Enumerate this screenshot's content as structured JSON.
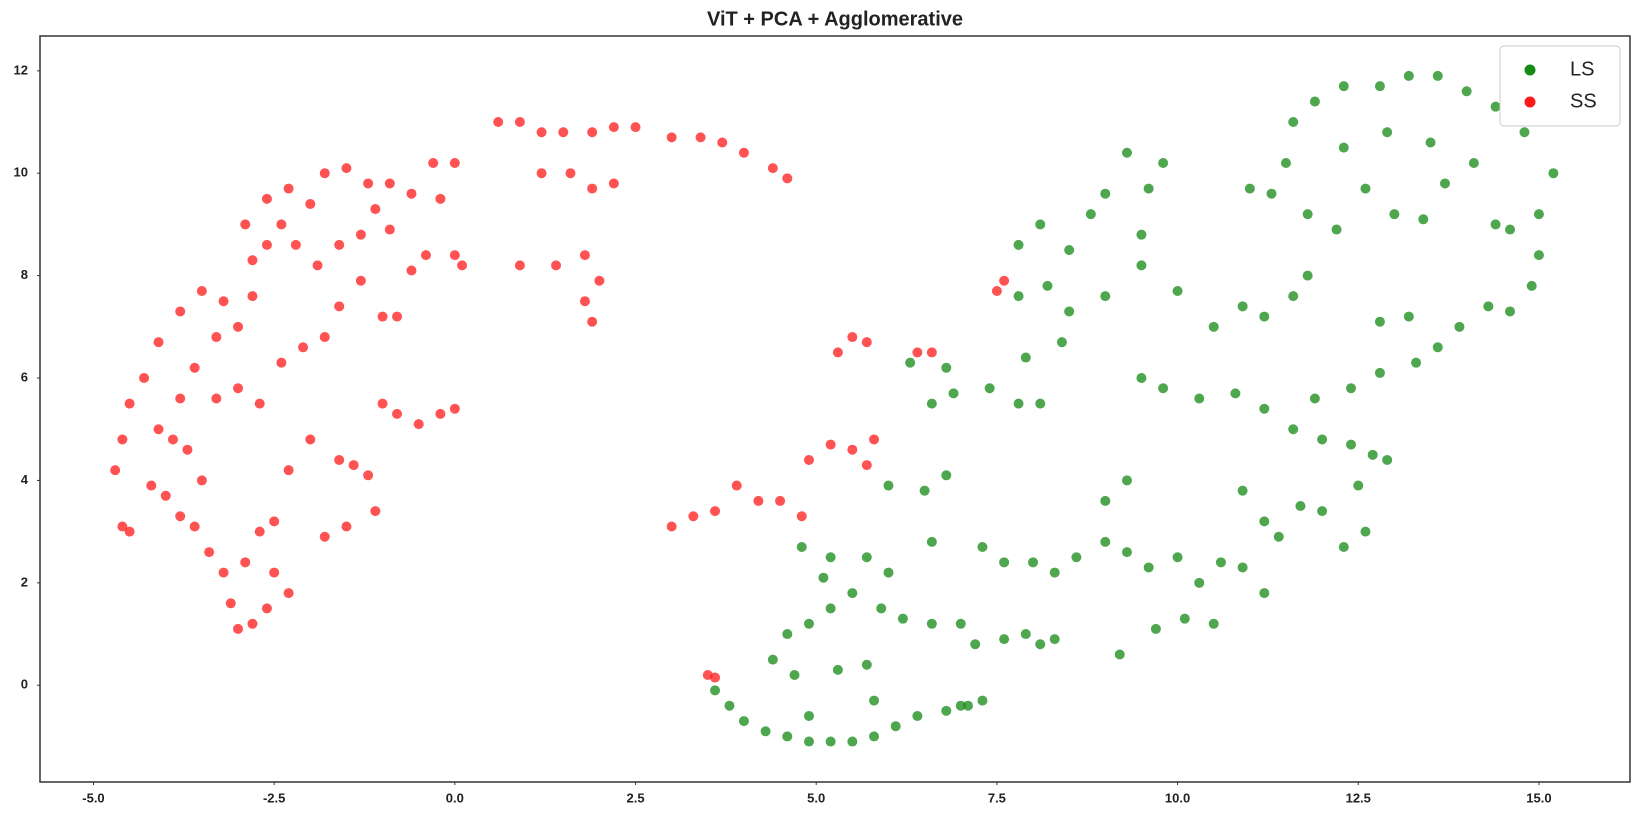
{
  "chart_data": {
    "type": "scatter",
    "title": "ViT + PCA + Agglomerative",
    "xlim": [
      -5.74,
      16.26
    ],
    "ylim": [
      -1.89,
      12.68
    ],
    "xticks": [
      {
        "value": -5,
        "label": "-5.0"
      },
      -2.5,
      {
        "value": 0,
        "label": "0.0"
      },
      2.5,
      {
        "value": 5,
        "label": "5.0"
      },
      7.5,
      {
        "value": 10,
        "label": "10.0"
      },
      12.5,
      {
        "value": 15,
        "label": "15.0"
      }
    ],
    "yticks": [
      0,
      2,
      4,
      6,
      8,
      10,
      12
    ],
    "grid": false,
    "legend": "upper right",
    "series": [
      {
        "name": "LS",
        "color": "#138a13",
        "x": [
          3.6,
          3.8,
          4.0,
          4.3,
          4.6,
          4.9,
          5.2,
          5.5,
          5.8,
          6.1,
          6.4,
          6.8,
          7.1,
          7.3,
          7.0,
          4.7,
          4.9,
          5.3,
          5.7,
          5.8,
          4.4,
          4.6,
          4.9,
          5.2,
          5.5,
          5.1,
          5.2,
          4.8,
          5.7,
          6.0,
          5.9,
          6.2,
          6.6,
          7.0,
          7.2,
          7.6,
          7.9,
          8.1,
          8.3,
          7.3,
          7.6,
          8.0,
          8.3,
          8.6,
          9.0,
          9.3,
          9.6,
          10.0,
          10.3,
          10.6,
          10.9,
          11.2,
          9.2,
          9.7,
          10.1,
          10.5,
          9.0,
          9.3,
          6.0,
          6.5,
          6.8,
          6.6,
          6.6,
          6.9,
          6.8,
          7.4,
          7.8,
          8.1,
          7.9,
          8.4,
          8.5,
          8.2,
          7.8,
          7.8,
          8.1,
          8.5,
          8.8,
          9.0,
          9.6,
          9.8,
          9.5,
          9.5,
          9.0,
          10.0,
          10.5,
          10.9,
          11.2,
          11.6,
          11.8,
          9.5,
          9.8,
          10.3,
          10.8,
          11.2,
          11.6,
          12.0,
          12.4,
          12.7,
          12.9,
          12.5,
          12.0,
          11.7,
          11.2,
          10.9,
          12.3,
          12.6,
          11.4,
          11.9,
          12.4,
          12.8,
          13.3,
          13.6,
          13.9,
          14.3,
          14.6,
          14.9,
          15.0,
          15.0,
          15.2,
          14.8,
          14.4,
          14.0,
          13.6,
          13.2,
          12.8,
          12.3,
          11.9,
          11.6,
          11.5,
          11.3,
          11.8,
          12.2,
          12.6,
          13.0,
          13.4,
          13.7,
          14.1,
          14.4,
          14.6,
          12.8,
          13.2,
          12.3,
          12.9,
          13.5,
          11.0,
          9.3,
          6.3
        ],
        "y": [
          -0.1,
          -0.4,
          -0.7,
          -0.9,
          -1.0,
          -1.1,
          -1.1,
          -1.1,
          -1.0,
          -0.8,
          -0.6,
          -0.5,
          -0.4,
          -0.3,
          -0.4,
          0.2,
          -0.6,
          0.3,
          0.4,
          -0.3,
          0.5,
          1.0,
          1.2,
          1.5,
          1.8,
          2.1,
          2.5,
          2.7,
          2.5,
          2.2,
          1.5,
          1.3,
          1.2,
          1.2,
          0.8,
          0.9,
          1.0,
          0.8,
          0.9,
          2.7,
          2.4,
          2.4,
          2.2,
          2.5,
          2.8,
          2.6,
          2.3,
          2.5,
          2.0,
          2.4,
          2.3,
          1.8,
          0.6,
          1.1,
          1.3,
          1.2,
          3.6,
          4.0,
          3.9,
          3.8,
          4.1,
          2.8,
          5.5,
          5.7,
          6.2,
          5.8,
          5.5,
          5.5,
          6.4,
          6.7,
          7.3,
          7.8,
          7.6,
          8.6,
          9.0,
          8.5,
          9.2,
          9.6,
          9.7,
          10.2,
          8.8,
          8.2,
          7.6,
          7.7,
          7.0,
          7.4,
          7.2,
          7.6,
          8.0,
          6.0,
          5.8,
          5.6,
          5.7,
          5.4,
          5.0,
          4.8,
          4.7,
          4.5,
          4.4,
          3.9,
          3.4,
          3.5,
          3.2,
          3.8,
          2.7,
          3.0,
          2.9,
          5.6,
          5.8,
          6.1,
          6.3,
          6.6,
          7.0,
          7.4,
          7.3,
          7.8,
          8.4,
          9.2,
          10.0,
          10.8,
          11.3,
          11.6,
          11.9,
          11.9,
          11.7,
          11.7,
          11.4,
          11.0,
          10.2,
          9.6,
          9.2,
          8.9,
          9.7,
          9.2,
          9.1,
          9.8,
          10.2,
          9.0,
          8.9,
          7.1,
          7.2,
          10.5,
          10.8,
          10.6,
          9.7,
          10.4,
          6.3
        ]
      },
      {
        "name": "SS",
        "color": "#ff1a1a",
        "x": [
          -4.7,
          -4.6,
          -4.5,
          -4.6,
          -4.5,
          -4.3,
          -4.1,
          -3.8,
          -3.5,
          -3.2,
          -2.8,
          -2.9,
          -2.6,
          -2.3,
          -1.8,
          -1.5,
          -1.2,
          -0.9,
          -0.6,
          -0.3,
          0.0,
          -0.2,
          0.1,
          0.0,
          0.6,
          0.9,
          1.2,
          1.5,
          1.9,
          2.2,
          2.5,
          3.0,
          3.4,
          3.7,
          4.0,
          4.4,
          4.6,
          1.2,
          1.6,
          1.9,
          2.2,
          0.9,
          1.4,
          1.8,
          1.8,
          1.9,
          2.0,
          -0.5,
          -0.2,
          0.0,
          -0.8,
          -1.0,
          -1.4,
          -1.2,
          -1.6,
          -1.1,
          -1.5,
          -1.8,
          -2.0,
          -2.3,
          -2.5,
          -2.7,
          -2.9,
          -2.5,
          -2.3,
          -2.6,
          -2.8,
          -3.0,
          -3.1,
          -3.2,
          -3.4,
          -3.6,
          -3.8,
          -4.0,
          -4.2,
          -3.9,
          -3.7,
          -3.5,
          -3.3,
          -3.0,
          -2.7,
          -2.4,
          -2.1,
          -1.8,
          -1.6,
          -1.3,
          -1.0,
          -0.8,
          -3.6,
          -3.3,
          -3.0,
          -3.8,
          -4.1,
          -2.2,
          -1.9,
          -1.6,
          -1.3,
          -2.6,
          -2.8,
          -0.6,
          -0.4,
          3.0,
          3.3,
          3.6,
          3.9,
          4.2,
          4.5,
          4.8,
          4.9,
          5.2,
          5.5,
          5.7,
          5.8,
          5.3,
          5.5,
          5.7,
          6.4,
          6.6,
          7.5,
          7.6,
          3.5,
          3.6,
          -1.1,
          -0.9,
          -2.0,
          -2.4
        ],
        "y": [
          4.2,
          3.1,
          3.0,
          4.8,
          5.5,
          6.0,
          6.7,
          7.3,
          7.7,
          7.5,
          7.6,
          9.0,
          9.5,
          9.7,
          10.0,
          10.1,
          9.8,
          9.8,
          9.6,
          10.2,
          10.2,
          9.5,
          8.2,
          8.4,
          11.0,
          11.0,
          10.8,
          10.8,
          10.8,
          10.9,
          10.9,
          10.7,
          10.7,
          10.6,
          10.4,
          10.1,
          9.9,
          10.0,
          10.0,
          9.7,
          9.8,
          8.2,
          8.2,
          8.4,
          7.5,
          7.1,
          7.9,
          5.1,
          5.3,
          5.4,
          5.3,
          5.5,
          4.3,
          4.1,
          4.4,
          3.4,
          3.1,
          2.9,
          4.8,
          4.2,
          3.2,
          3.0,
          2.4,
          2.2,
          1.8,
          1.5,
          1.2,
          1.1,
          1.6,
          2.2,
          2.6,
          3.1,
          3.3,
          3.7,
          3.9,
          4.8,
          4.6,
          4.0,
          5.6,
          5.8,
          5.5,
          6.3,
          6.6,
          6.8,
          7.4,
          7.9,
          7.2,
          7.2,
          6.2,
          6.8,
          7.0,
          5.6,
          5.0,
          8.6,
          8.2,
          8.6,
          8.8,
          8.6,
          8.3,
          8.1,
          8.4,
          3.1,
          3.3,
          3.4,
          3.9,
          3.6,
          3.6,
          3.3,
          4.4,
          4.7,
          4.6,
          4.3,
          4.8,
          6.5,
          6.8,
          6.7,
          6.5,
          6.5,
          7.7,
          7.9,
          0.2,
          0.15,
          9.3,
          8.9,
          9.4,
          9.0
        ]
      }
    ]
  }
}
